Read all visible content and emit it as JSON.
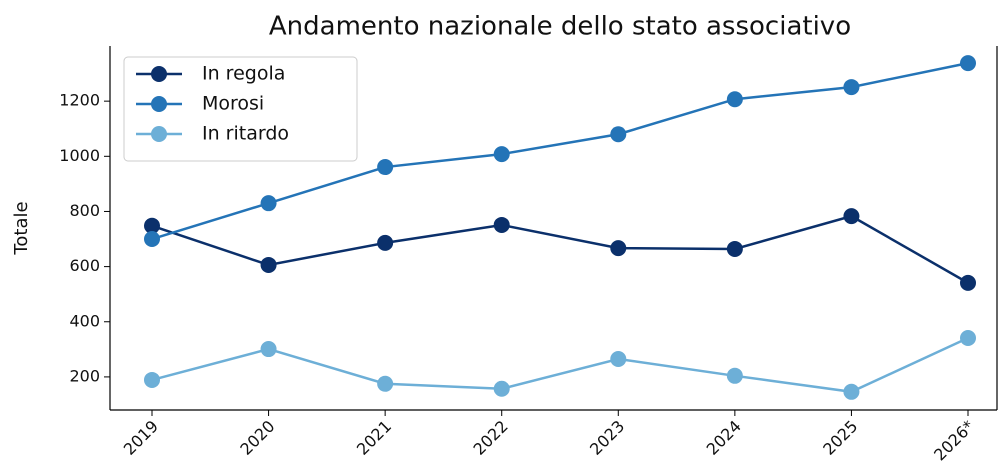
{
  "chart_data": {
    "type": "line",
    "title": "Andamento nazionale dello stato associativo",
    "ylabel": "Totale",
    "categories": [
      "2019",
      "2020",
      "2021",
      "2022",
      "2023",
      "2024",
      "2025",
      "2026*"
    ],
    "series": [
      {
        "name": "In regola",
        "color": "#0b306b",
        "values": [
          748,
          606,
          686,
          751,
          667,
          664,
          783,
          541
        ]
      },
      {
        "name": "Morosi",
        "color": "#2474b7",
        "values": [
          700,
          830,
          961,
          1008,
          1080,
          1207,
          1251,
          1338
        ]
      },
      {
        "name": "In ritardo",
        "color": "#6dafd7",
        "values": [
          189,
          301,
          175,
          157,
          265,
          204,
          146,
          341
        ]
      }
    ],
    "ylim": [
      80,
      1400
    ],
    "yticks": [
      200,
      400,
      600,
      800,
      1000,
      1200
    ],
    "legend": "upper left",
    "grid": false
  }
}
